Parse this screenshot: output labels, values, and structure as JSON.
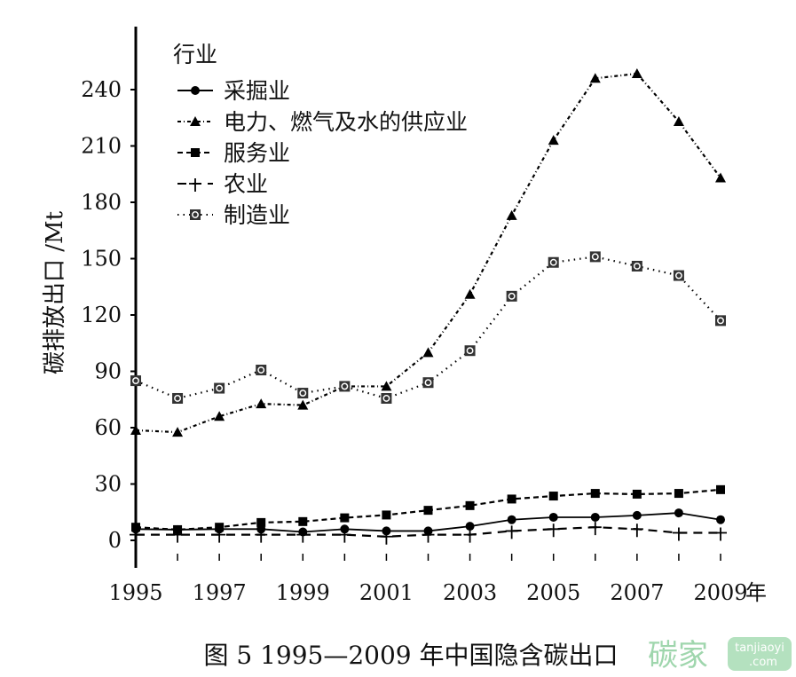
{
  "chart_data": {
    "type": "line",
    "title": "",
    "caption": "图 5  1995—2009 年中国隐含碳出口",
    "xlabel": "年",
    "ylabel": "碳排放出口 /Mt",
    "ylim": [
      0,
      250
    ],
    "yticks": [
      0,
      30,
      60,
      90,
      120,
      150,
      180,
      210,
      240
    ],
    "xticks": [
      1995,
      1997,
      1999,
      2001,
      2003,
      2005,
      2007,
      2009
    ],
    "x": [
      1995,
      1996,
      1997,
      1998,
      1999,
      2000,
      2001,
      2002,
      2003,
      2004,
      2005,
      2006,
      2007,
      2008,
      2009
    ],
    "legend_title": "行业",
    "legend_position": "top-left",
    "grid": false,
    "series": [
      {
        "name": "采掘业",
        "marker": "circle",
        "dash": "solid",
        "values": [
          6,
          5.7,
          6,
          6,
          4.5,
          6,
          5,
          5,
          7.5,
          11,
          12.3,
          12.3,
          13.3,
          14.6,
          11
        ]
      },
      {
        "name": "电力、燃气及水的供应业",
        "marker": "triangle",
        "dash": "dashdot",
        "values": [
          58.6,
          57.6,
          66,
          72.7,
          72,
          82,
          82,
          100,
          131,
          173,
          213,
          246,
          248.5,
          223,
          193
        ]
      },
      {
        "name": "服务业",
        "marker": "square",
        "dash": "dashed",
        "values": [
          7,
          5.7,
          7,
          9.5,
          10,
          12,
          13.5,
          16,
          18.5,
          22,
          23.6,
          25,
          24.6,
          25,
          27
        ]
      },
      {
        "name": "农业",
        "marker": "plus",
        "dash": "longdash",
        "values": [
          3,
          3,
          3,
          3,
          3,
          3,
          2,
          3,
          3,
          5,
          6,
          7,
          6,
          4,
          4
        ]
      },
      {
        "name": "制造业",
        "marker": "boxed-circle",
        "dash": "dotted",
        "values": [
          85,
          75.6,
          81,
          90.7,
          78.4,
          82,
          75.6,
          84,
          101,
          130,
          148,
          151,
          146,
          141,
          117
        ]
      }
    ]
  },
  "watermark": {
    "brand": "碳家",
    "site": "tanjiaoyi",
    "tld": ".com",
    "color_green": "#8fcf9f",
    "color_orange": "#f2b48f"
  }
}
